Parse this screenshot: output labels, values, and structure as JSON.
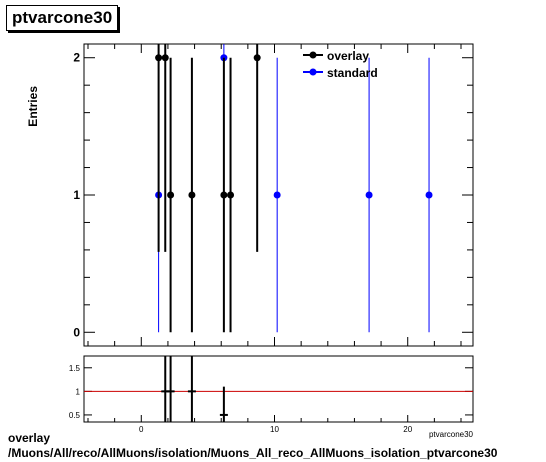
{
  "title": "ptvarcone30",
  "footer": {
    "line1": "overlay",
    "line2": "/Muons/All/reco/AllMuons/isolation/Muons_All_reco_AllMuons_isolation_ptvarcone30"
  },
  "chart_data": {
    "type": "scatter",
    "title": "ptvarcone30",
    "ylabel": "Entries",
    "xlabel": "ptvarcone30",
    "xlim": [
      -4.3,
      24.9
    ],
    "ylim": [
      -0.1,
      2.1
    ],
    "yticks": [
      0,
      1,
      2
    ],
    "legend": {
      "position": "top-right",
      "entries": [
        "overlay",
        "standard"
      ]
    },
    "series": [
      {
        "name": "overlay",
        "color": "#000000",
        "points": [
          {
            "x": 1.3,
            "y": 2,
            "err": 1.414
          },
          {
            "x": 1.8,
            "y": 2,
            "err": 1.414
          },
          {
            "x": 2.2,
            "y": 1,
            "err": 1.0
          },
          {
            "x": 3.8,
            "y": 1,
            "err": 1.0
          },
          {
            "x": 6.2,
            "y": 1,
            "err": 1.0
          },
          {
            "x": 6.7,
            "y": 1,
            "err": 1.0
          },
          {
            "x": 8.7,
            "y": 2,
            "err": 1.414
          }
        ]
      },
      {
        "name": "standard",
        "color": "#0000ff",
        "points": [
          {
            "x": 1.3,
            "y": 1,
            "err": 1.0
          },
          {
            "x": 6.2,
            "y": 2,
            "err": 1.414
          },
          {
            "x": 10.2,
            "y": 1,
            "err": 1.0
          },
          {
            "x": 17.1,
            "y": 1,
            "err": 1.0
          },
          {
            "x": 21.6,
            "y": 1,
            "err": 1.0
          }
        ]
      }
    ],
    "ratio": {
      "ylim": [
        0.35,
        1.75
      ],
      "yticks": [
        0.5,
        1,
        1.5
      ],
      "xticks": [
        0,
        10,
        20
      ],
      "reference": 1,
      "reference_color": "#cc0000",
      "points": [
        {
          "x": 1.8,
          "y": 1,
          "err_low": 1.0,
          "err_high": 1.0
        },
        {
          "x": 2.2,
          "y": 1,
          "err_low": 1.0,
          "err_high": 1.0
        },
        {
          "x": 3.8,
          "y": 1,
          "err_low": 1.0,
          "err_high": 1.0
        },
        {
          "x": 6.2,
          "y": 0.5,
          "err_low": 0.5,
          "err_high": 0.6
        }
      ]
    }
  }
}
